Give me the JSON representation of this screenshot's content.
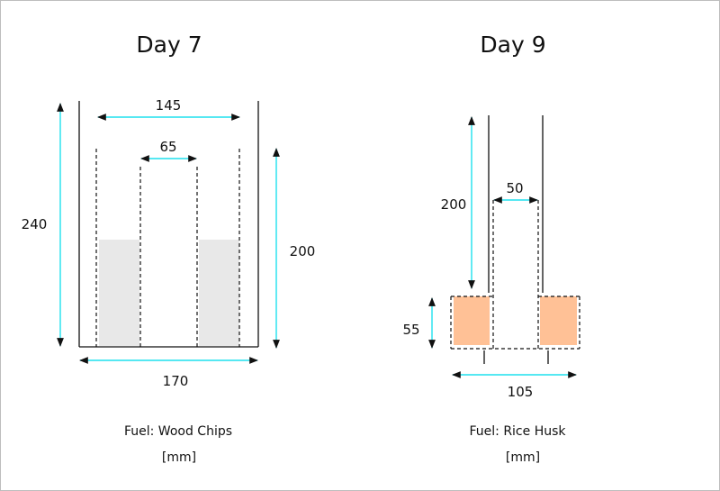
{
  "panels": [
    {
      "title": "Day 7",
      "fuel_label": "Fuel: Wood Chips",
      "unit": "[mm]",
      "dimensions": {
        "inner_width": "145",
        "core_width": "65",
        "height_total": "240",
        "height_inner": "200",
        "outer_width": "170"
      }
    },
    {
      "title": "Day 9",
      "fuel_label": "Fuel: Rice Husk",
      "unit": "[mm]",
      "dimensions": {
        "height_upper": "200",
        "core_width": "50",
        "fuel_height": "55",
        "base_width": "105"
      }
    }
  ],
  "colors": {
    "dimension_arrow": "#1ee0ee",
    "wood_chips_fill": "#e8e8e8",
    "rice_husk_fill": "#ffc196"
  }
}
